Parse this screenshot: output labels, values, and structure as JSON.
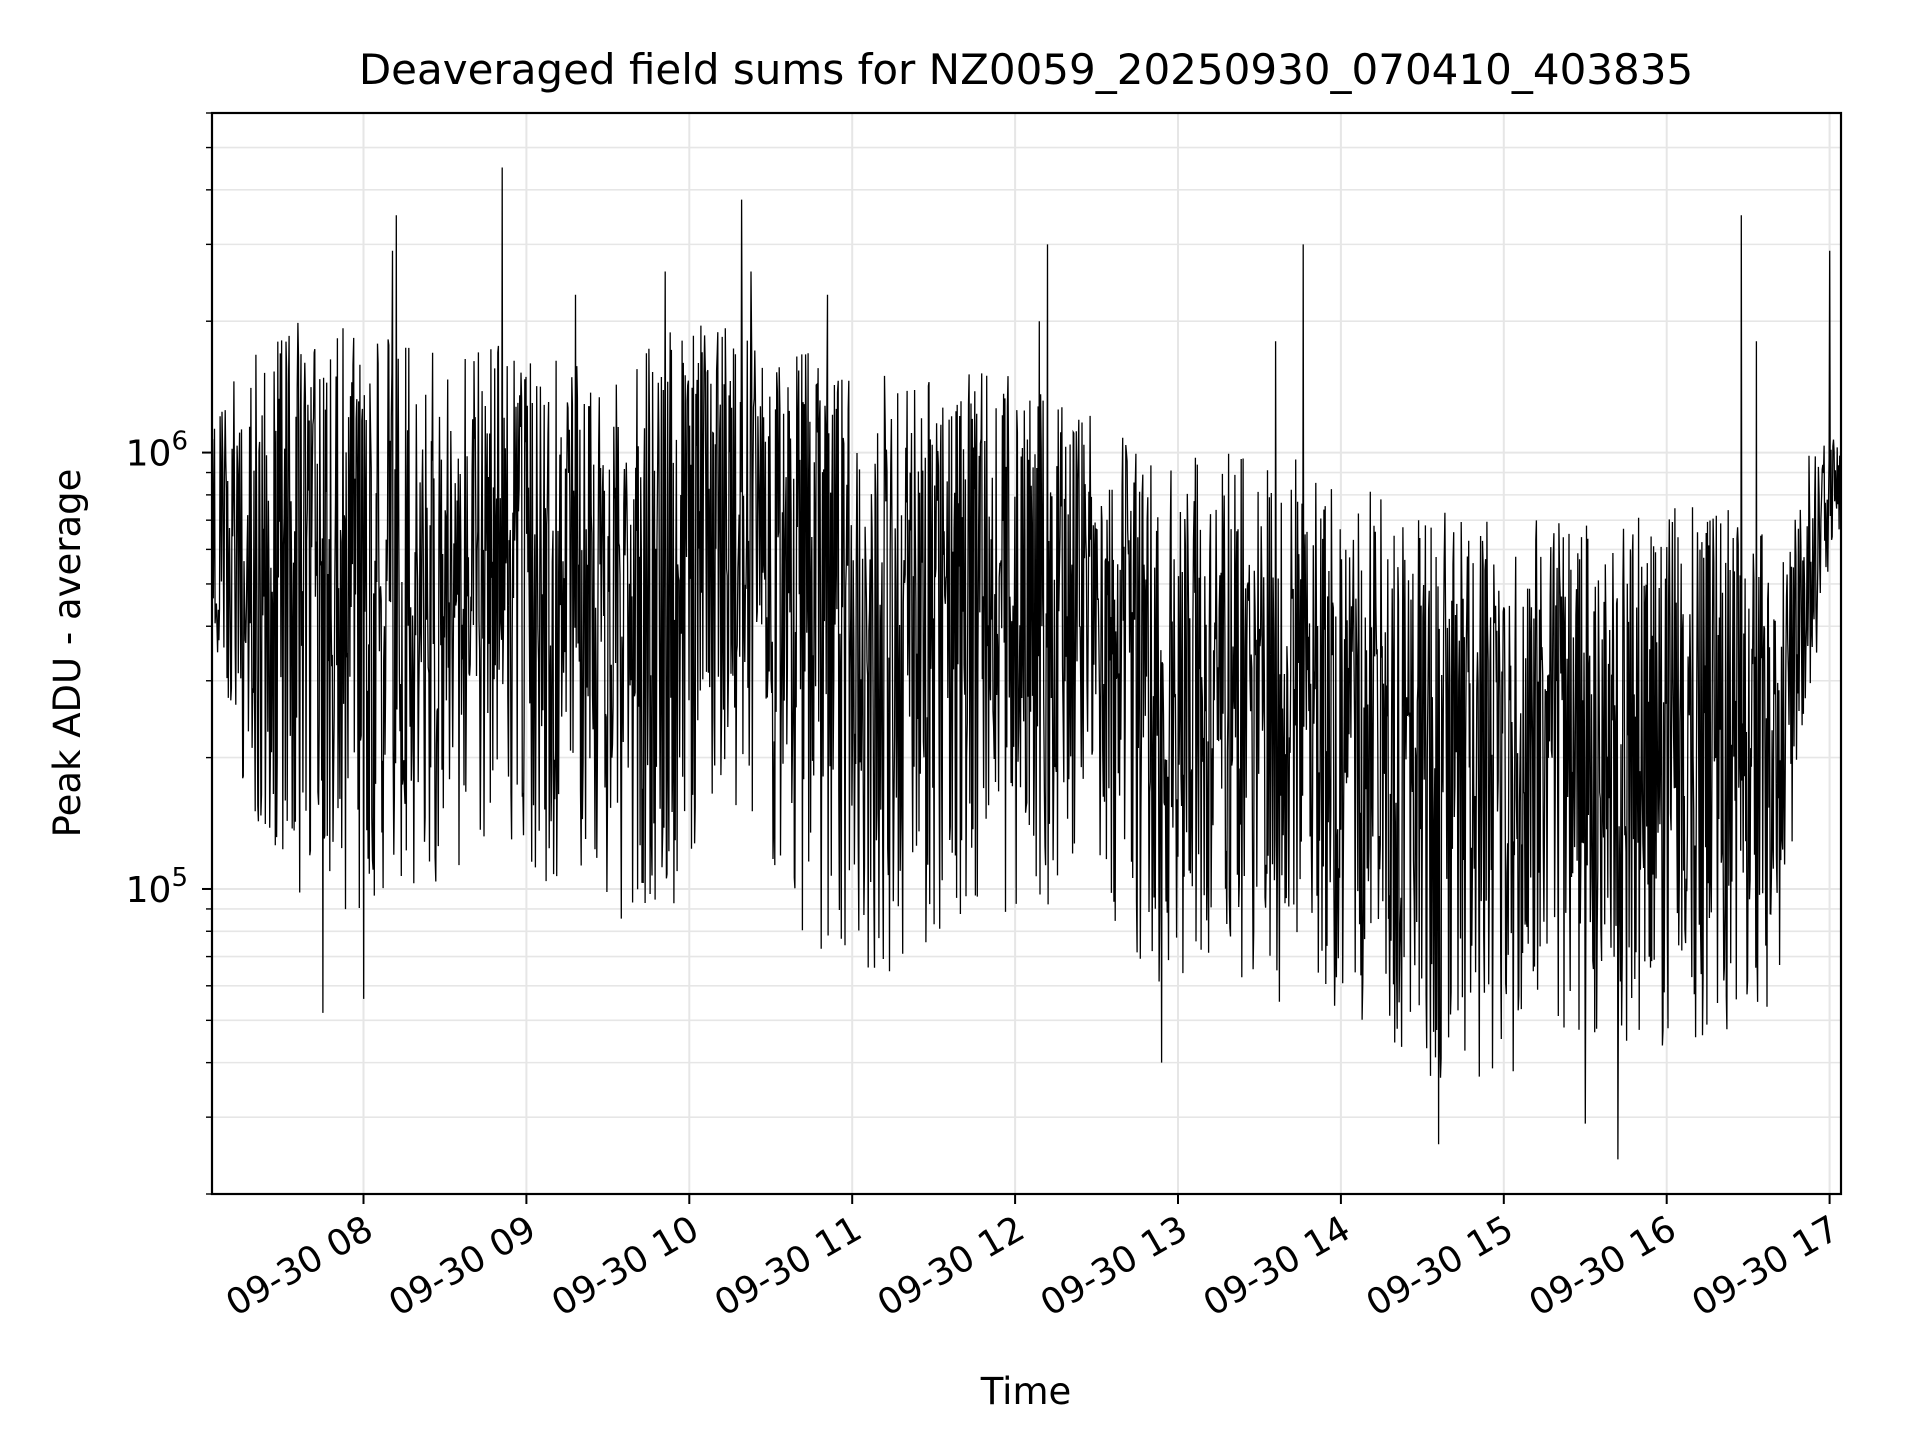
{
  "chart_data": {
    "type": "line",
    "title": "Deaveraged field sums for NZ0059_20250930_070410_403835",
    "xlabel": "Time",
    "ylabel": "Peak ADU - average",
    "yscale": "log",
    "xlim_hours": [
      7.07,
      17.07
    ],
    "ylim": [
      20000,
      6000000
    ],
    "xticks": [
      {
        "hour": 8,
        "label": "09-30 08"
      },
      {
        "hour": 9,
        "label": "09-30 09"
      },
      {
        "hour": 10,
        "label": "09-30 10"
      },
      {
        "hour": 11,
        "label": "09-30 11"
      },
      {
        "hour": 12,
        "label": "09-30 12"
      },
      {
        "hour": 13,
        "label": "09-30 13"
      },
      {
        "hour": 14,
        "label": "09-30 14"
      },
      {
        "hour": 15,
        "label": "09-30 15"
      },
      {
        "hour": 16,
        "label": "09-30 16"
      },
      {
        "hour": 17,
        "label": "09-30 17"
      }
    ],
    "yticks_major": [
      {
        "value": 100000,
        "base": "10",
        "exp": "5"
      },
      {
        "value": 1000000,
        "base": "10",
        "exp": "6"
      }
    ],
    "grid": true,
    "line_color": "#000000",
    "grid_color": "#e6e6e6",
    "envelope": [
      {
        "hour": 7.07,
        "high": 1200000,
        "low": 400000
      },
      {
        "hour": 7.3,
        "high": 1800000,
        "low": 150000
      },
      {
        "hour": 7.6,
        "high": 2000000,
        "low": 80000
      },
      {
        "hour": 8.0,
        "high": 1900000,
        "low": 90000
      },
      {
        "hour": 8.4,
        "high": 1700000,
        "low": 100000
      },
      {
        "hour": 8.8,
        "high": 1800000,
        "low": 120000
      },
      {
        "hour": 9.2,
        "high": 1700000,
        "low": 100000
      },
      {
        "hour": 9.6,
        "high": 1600000,
        "low": 80000
      },
      {
        "hour": 9.9,
        "high": 2000000,
        "low": 80000
      },
      {
        "hour": 10.2,
        "high": 2000000,
        "low": 150000
      },
      {
        "hour": 10.5,
        "high": 1800000,
        "low": 100000
      },
      {
        "hour": 10.8,
        "high": 1700000,
        "low": 70000
      },
      {
        "hour": 11.2,
        "high": 1500000,
        "low": 60000
      },
      {
        "hour": 11.6,
        "high": 1700000,
        "low": 80000
      },
      {
        "hour": 12.0,
        "high": 1500000,
        "low": 90000
      },
      {
        "hour": 12.4,
        "high": 1300000,
        "low": 80000
      },
      {
        "hour": 12.8,
        "high": 1000000,
        "low": 60000
      },
      {
        "hour": 13.2,
        "high": 1000000,
        "low": 60000
      },
      {
        "hour": 13.6,
        "high": 1000000,
        "low": 55000
      },
      {
        "hour": 14.0,
        "high": 900000,
        "low": 50000
      },
      {
        "hour": 14.4,
        "high": 800000,
        "low": 35000
      },
      {
        "hour": 14.8,
        "high": 700000,
        "low": 35000
      },
      {
        "hour": 15.2,
        "high": 700000,
        "low": 38000
      },
      {
        "hour": 15.6,
        "high": 700000,
        "low": 38000
      },
      {
        "hour": 16.0,
        "high": 750000,
        "low": 40000
      },
      {
        "hour": 16.4,
        "high": 750000,
        "low": 40000
      },
      {
        "hour": 16.7,
        "high": 600000,
        "low": 60000
      },
      {
        "hour": 16.85,
        "high": 1000000,
        "low": 250000
      },
      {
        "hour": 17.07,
        "high": 1100000,
        "low": 700000
      }
    ],
    "spikes": [
      {
        "hour": 8.2,
        "value": 3500000
      },
      {
        "hour": 8.18,
        "value": 2900000
      },
      {
        "hour": 8.85,
        "value": 4500000
      },
      {
        "hour": 9.3,
        "value": 2300000
      },
      {
        "hour": 9.85,
        "value": 2600000
      },
      {
        "hour": 10.32,
        "value": 3800000
      },
      {
        "hour": 10.38,
        "value": 2600000
      },
      {
        "hour": 10.85,
        "value": 2300000
      },
      {
        "hour": 12.2,
        "value": 3000000
      },
      {
        "hour": 12.15,
        "value": 2000000
      },
      {
        "hour": 13.77,
        "value": 3000000
      },
      {
        "hour": 13.6,
        "value": 1800000
      },
      {
        "hour": 16.46,
        "value": 3500000
      },
      {
        "hour": 16.55,
        "value": 1800000
      },
      {
        "hour": 17.0,
        "value": 2900000
      }
    ],
    "dips": [
      {
        "hour": 7.75,
        "value": 52000
      },
      {
        "hour": 8.0,
        "value": 56000
      },
      {
        "hour": 12.9,
        "value": 40000
      },
      {
        "hour": 14.6,
        "value": 26000
      },
      {
        "hour": 15.7,
        "value": 24000
      },
      {
        "hour": 15.5,
        "value": 29000
      }
    ]
  }
}
